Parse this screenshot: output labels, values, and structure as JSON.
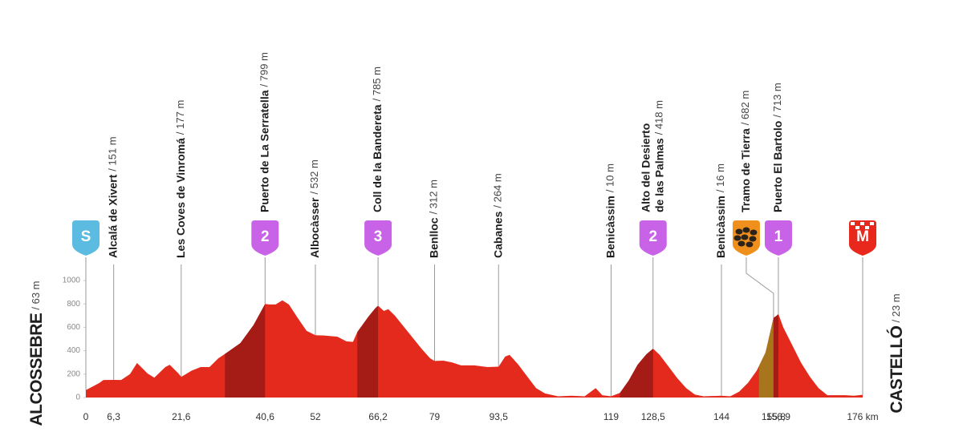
{
  "chart_data": {
    "type": "elevation-profile",
    "xlim": [
      0,
      176
    ],
    "ylim": [
      0,
      1000
    ],
    "xticks": [
      0,
      {
        "value": 6.3,
        "label": "6,3"
      },
      {
        "value": 21.6,
        "label": "21,6"
      },
      {
        "value": 40.6,
        "label": "40,6"
      },
      52,
      {
        "value": 66.2,
        "label": "66,2"
      },
      79,
      {
        "value": 93.5,
        "label": "93,5"
      },
      119,
      {
        "value": 128.5,
        "label": "128,5"
      },
      144,
      {
        "value": 155.8,
        "label": "155,8"
      },
      {
        "value": 156.9,
        "label": "156,9"
      },
      {
        "value": 176,
        "label": "176 km"
      }
    ],
    "yticks": [
      0,
      200,
      400,
      600,
      800,
      1000
    ],
    "color": "#e42a1d",
    "x": [
      0,
      3,
      4,
      6.3,
      8,
      10,
      11.6,
      12,
      14,
      15.5,
      18,
      19,
      21,
      21.6,
      24,
      26,
      28,
      30,
      32,
      35,
      38,
      40.6,
      41.5,
      43,
      44.5,
      46,
      48,
      50,
      52,
      54,
      57,
      59,
      60.5,
      61.5,
      64,
      65.5,
      66.2,
      67.5,
      68.5,
      70,
      73,
      76,
      78,
      79,
      81,
      83,
      85,
      88,
      91,
      93.5,
      95,
      96,
      98,
      100,
      102,
      104,
      107,
      110,
      113,
      115.5,
      117,
      119,
      121,
      123,
      125,
      127,
      128.5,
      130,
      132,
      134,
      136,
      138,
      140,
      144,
      146,
      148,
      150,
      152,
      154,
      155.8,
      156.2,
      156.9,
      158,
      160,
      162,
      164,
      166,
      168,
      172,
      174,
      176
    ],
    "values": [
      63,
      123,
      150,
      151,
      150,
      200,
      295,
      280,
      205,
      170,
      260,
      280,
      205,
      177,
      230,
      260,
      260,
      335,
      385,
      465,
      620,
      799,
      795,
      795,
      830,
      795,
      680,
      570,
      532,
      530,
      520,
      480,
      475,
      560,
      690,
      760,
      785,
      740,
      755,
      700,
      560,
      420,
      335,
      312,
      315,
      300,
      275,
      275,
      260,
      264,
      350,
      365,
      280,
      180,
      80,
      35,
      10,
      15,
      10,
      80,
      20,
      10,
      40,
      145,
      280,
      370,
      418,
      365,
      265,
      165,
      80,
      25,
      10,
      16,
      10,
      50,
      125,
      230,
      385,
      682,
      690,
      713,
      600,
      450,
      300,
      180,
      80,
      20,
      20,
      15,
      23
    ],
    "sections": [
      {
        "from": 31.5,
        "to": 40.6,
        "color": "#a51b16"
      },
      {
        "from": 61.5,
        "to": 66.2,
        "color": "#a51b16"
      },
      {
        "from": 121,
        "to": 128.5,
        "color": "#a51b16"
      },
      {
        "from": 152.5,
        "to": 155.8,
        "color": "#a8741c"
      },
      {
        "from": 155.8,
        "to": 156.9,
        "color": "#a51b16"
      }
    ],
    "start": {
      "name": "ALCOSSEBRE",
      "altitude": 63,
      "altitude_label": "/ 63 m",
      "km": 0
    },
    "finish": {
      "name": "CASTELLÓ",
      "altitude": 23,
      "altitude_label": "/ 23 m",
      "km": 176
    },
    "waypoints": [
      {
        "name": [
          "Alcalá de Xivert"
        ],
        "altitude": 151,
        "altitude_label": "/ 151 m",
        "km": 6.3
      },
      {
        "name": [
          "Les Coves de Vinromá"
        ],
        "altitude": 177,
        "altitude_label": "/ 177 m",
        "km": 21.6
      },
      {
        "name": [
          "Puerto de La Serratella"
        ],
        "altitude": 799,
        "altitude_label": "/ 799 m",
        "km": 40.6
      },
      {
        "name": [
          "Albocàsser"
        ],
        "altitude": 532,
        "altitude_label": "/ 532 m",
        "km": 52
      },
      {
        "name": [
          "Coll de la Bandereta"
        ],
        "altitude": 785,
        "altitude_label": "/ 785 m",
        "km": 66.2
      },
      {
        "name": [
          "Benlloc"
        ],
        "altitude": 312,
        "altitude_label": "/ 312 m",
        "km": 79
      },
      {
        "name": [
          "Cabanes"
        ],
        "altitude": 264,
        "altitude_label": "/ 264 m",
        "km": 93.5
      },
      {
        "name": [
          "Benicàssim"
        ],
        "altitude": 10,
        "altitude_label": "/ 10 m",
        "km": 119
      },
      {
        "name": [
          "Alto del Desierto",
          "de las Palmas"
        ],
        "altitude": 418,
        "altitude_label": "/ 418 m",
        "km": 128.5
      },
      {
        "name": [
          "Benicàssim"
        ],
        "altitude": 16,
        "altitude_label": "/ 16 m",
        "km": 144
      },
      {
        "name": [
          "Tramo de Tierra"
        ],
        "altitude": 682,
        "altitude_label": "/ 682 m",
        "km": 155.8
      },
      {
        "name": [
          "Puerto El Bartolo"
        ],
        "altitude": 713,
        "altitude_label": "/ 713 m",
        "km": 156.9
      }
    ],
    "badges": [
      {
        "label": "S",
        "km": 0,
        "color": "#5cbbe0",
        "kind": "start"
      },
      {
        "label": "2",
        "km": 40.6,
        "color": "#c862e6",
        "kind": "climb"
      },
      {
        "label": "3",
        "km": 66.2,
        "color": "#c862e6",
        "kind": "climb"
      },
      {
        "label": "2",
        "km": 128.5,
        "color": "#c862e6",
        "kind": "climb"
      },
      {
        "km": 155.8,
        "color": "#f0901c",
        "kind": "gravel"
      },
      {
        "label": "1",
        "km": 156.9,
        "color": "#c862e6",
        "kind": "climb"
      },
      {
        "label": "M",
        "km": 176,
        "color": "#e8281c",
        "kind": "finish"
      }
    ]
  }
}
